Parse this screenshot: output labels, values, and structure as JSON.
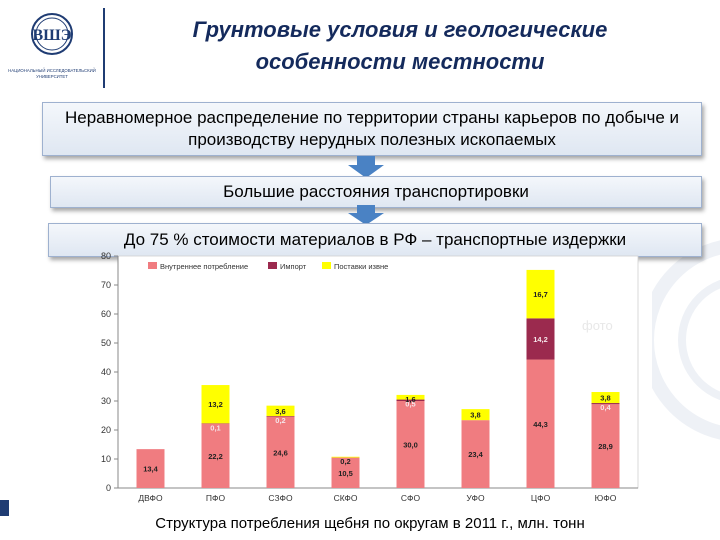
{
  "header": {
    "title_line1": "Грунтовые условия и геологические",
    "title_line2": "особенности местности"
  },
  "logo": {
    "text_line1": "НАЦИОНАЛЬНЫЙ ИССЛЕДОВАТЕЛЬСКИЙ",
    "text_line2": "УНИВЕРСИТЕТ"
  },
  "flow": {
    "box1": "Неравномерное распределение по территории страны карьеров по добыче и производству нерудных полезных ископаемых",
    "box2": "Большие расстояния транспортировки",
    "box3": "До 75 % стоимости материалов в РФ – транспортные издержки"
  },
  "photo_label": "фото",
  "caption": "Структура потребления щебня по округам в 2011 г., млн. тонн",
  "colors": {
    "title": "#142a5c",
    "internal": "#f07c80",
    "import": "#9b2a4e",
    "external": "#ffff00",
    "arrow": "#4a82c4"
  },
  "chart_data": {
    "type": "bar",
    "stacked": true,
    "categories": [
      "ДВФО",
      "ПФО",
      "СЗФО",
      "СКФО",
      "СФО",
      "УФО",
      "ЦФО",
      "ЮФО"
    ],
    "series": [
      {
        "name": "Внутреннее потребление",
        "values": [
          13.4,
          22.2,
          24.6,
          10.5,
          30.0,
          23.4,
          44.3,
          28.9
        ],
        "labels": [
          "13,4",
          "22,2",
          "24,6",
          "10,5",
          "30,0",
          "23,4",
          "44,3",
          "28,9"
        ]
      },
      {
        "name": "Импорт",
        "values": [
          0,
          0.1,
          0.2,
          0,
          0.5,
          0,
          14.2,
          0.4
        ],
        "labels": [
          "",
          "0,1",
          "0,2",
          "",
          "0,5",
          "",
          "14,2",
          "0,4"
        ]
      },
      {
        "name": "Поставки извне",
        "values": [
          0,
          13.2,
          3.6,
          0.2,
          1.6,
          3.8,
          16.7,
          3.8
        ],
        "labels": [
          "",
          "13,2",
          "3,6",
          "0,2",
          "1,6",
          "3,8",
          "16,7",
          "3,8"
        ]
      }
    ],
    "ylim": [
      0,
      80
    ],
    "yticks": [
      0,
      10,
      20,
      30,
      40,
      50,
      60,
      70,
      80
    ],
    "grid": false,
    "legend": "top-left"
  }
}
